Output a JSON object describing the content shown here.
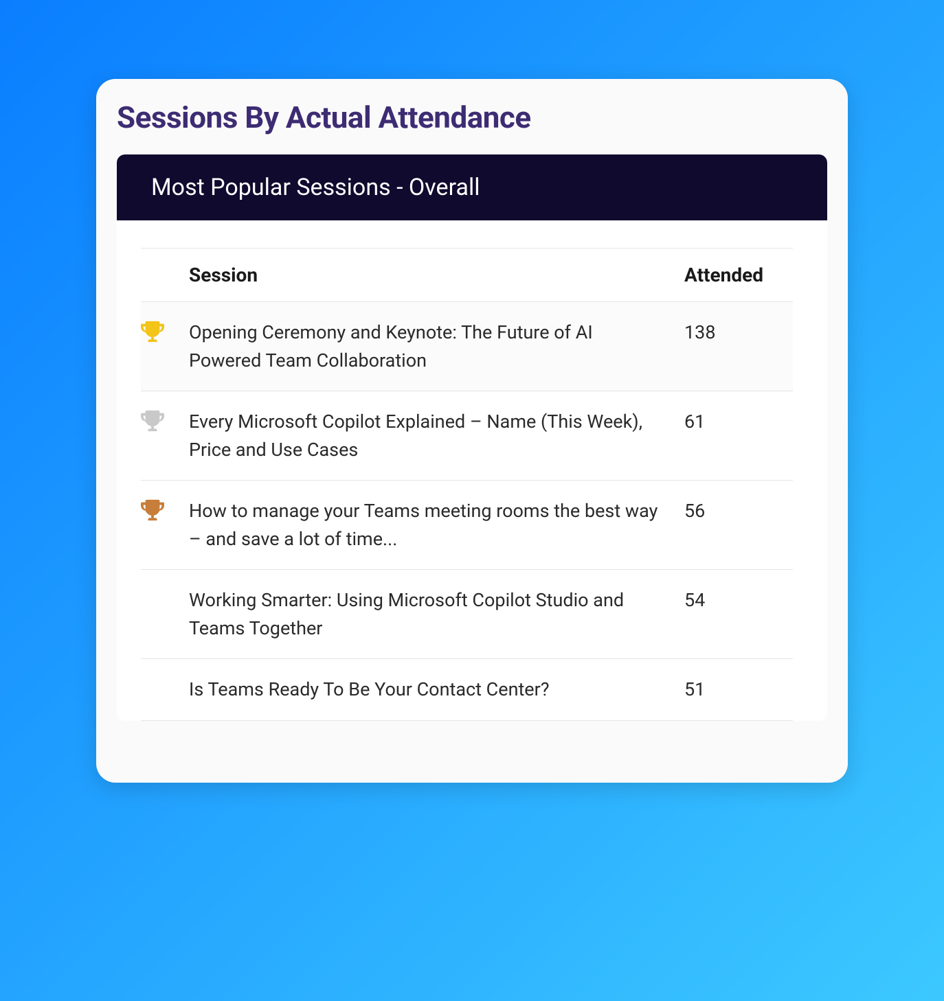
{
  "card": {
    "title": "Sessions By Actual Attendance",
    "panel_title": "Most Popular Sessions - Overall"
  },
  "colors": {
    "gradient_start": "#0a7eff",
    "gradient_end": "#3cc8ff",
    "card_bg": "#fafafa",
    "panel_bg": "#ffffff",
    "panel_header_bg": "#100a2e",
    "panel_header_text": "#ffffff",
    "title_color": "#3d2c73",
    "text_color": "#2a2a2a",
    "header_text_color": "#1a1a1a",
    "border_color": "#e5e5e5",
    "trophy_gold": "#f3c419",
    "trophy_silver": "#c9c9c9",
    "trophy_bronze": "#c77e3a"
  },
  "table": {
    "columns": [
      "",
      "Session",
      "Attended"
    ],
    "rows": [
      {
        "trophy": "gold",
        "session": "Opening Ceremony and Keynote: The Future of AI Powered Team Collaboration",
        "attended": "138"
      },
      {
        "trophy": "silver",
        "session": "Every Microsoft Copilot Explained – Name (This Week), Price and Use Cases",
        "attended": "61"
      },
      {
        "trophy": "bronze",
        "session": "How to manage your Teams meeting rooms the best way – and save a lot of time...",
        "attended": "56"
      },
      {
        "trophy": null,
        "session": "Working Smarter: Using Microsoft Copilot Studio and Teams Together",
        "attended": "54"
      },
      {
        "trophy": null,
        "session": "Is Teams Ready To Be Your Contact Center?",
        "attended": "51"
      }
    ]
  },
  "typography": {
    "title_fontsize": 44,
    "panel_header_fontsize": 34,
    "table_header_fontsize": 28,
    "table_cell_fontsize": 27
  }
}
